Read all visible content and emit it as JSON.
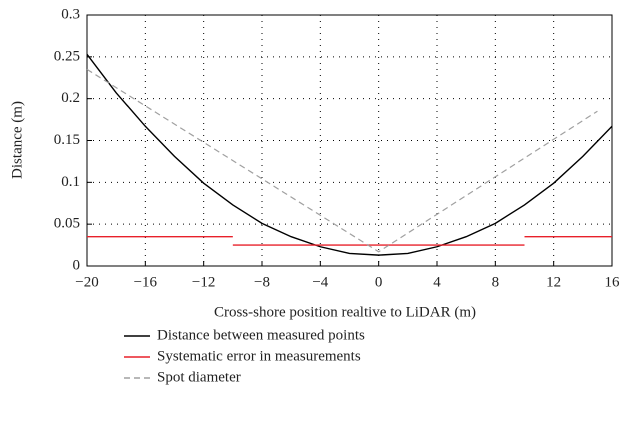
{
  "chart_data": {
    "type": "line",
    "xlabel": "Cross-shore position realtive to LiDAR (m)",
    "ylabel": "Distance (m)",
    "xlim": [
      -20,
      16
    ],
    "xticks": [
      {
        "value": -20,
        "label": "−20"
      },
      {
        "value": -16,
        "label": "−16"
      },
      {
        "value": -12,
        "label": "−12"
      },
      {
        "value": -8,
        "label": "−8"
      },
      {
        "value": -4,
        "label": "−4"
      },
      0,
      4,
      8,
      12,
      16
    ],
    "ylim": [
      0,
      0.3
    ],
    "yticks": [
      0,
      0.05,
      0.1,
      0.15,
      0.2,
      0.25,
      0.3
    ],
    "grid": true,
    "legend": "bottom",
    "series": [
      {
        "name": "Distance between measured points",
        "color": "#000000",
        "style": "solid",
        "x": [
          -20,
          -18,
          -16,
          -14,
          -12,
          -10,
          -8,
          -6,
          -4,
          -2,
          0,
          2,
          4,
          6,
          8,
          10,
          12,
          14,
          16
        ],
        "values": [
          0.253,
          0.207,
          0.167,
          0.131,
          0.099,
          0.073,
          0.051,
          0.035,
          0.023,
          0.015,
          0.013,
          0.015,
          0.023,
          0.035,
          0.051,
          0.073,
          0.099,
          0.131,
          0.167
        ]
      },
      {
        "name": "Systematic error in measurements",
        "color": "#e8202a",
        "style": "solid",
        "x": [
          -20,
          -10,
          -10,
          -10,
          10,
          10,
          10,
          16
        ],
        "values": [
          0.035,
          0.035,
          null,
          0.025,
          0.025,
          null,
          0.035,
          0.035
        ]
      },
      {
        "name": "Spot diameter",
        "color": "#a0a0a0",
        "style": "dashed",
        "x": [
          -20,
          0,
          15
        ],
        "values": [
          0.235,
          0.017,
          0.185
        ]
      }
    ]
  }
}
